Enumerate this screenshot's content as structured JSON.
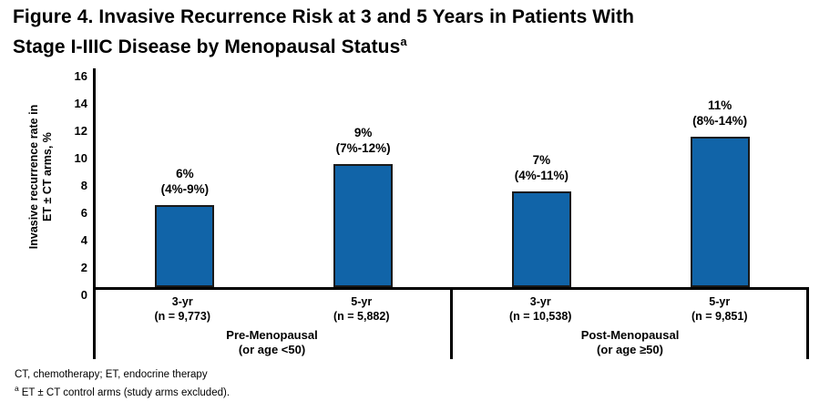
{
  "title": {
    "lines": [
      "Figure 4. Invasive Recurrence Risk at 3 and 5 Years in Patients With",
      "Stage I-IIIC Disease by Menopausal Status"
    ],
    "superscript": "a"
  },
  "chart_data": {
    "type": "bar",
    "title": "Figure 4. Invasive Recurrence Risk at 3 and 5 Years in Patients With Stage I-IIIC Disease by Menopausal Status",
    "ylabel_lines": [
      "Invasive recurrence rate in",
      "ET ± CT arms, %"
    ],
    "ylim": [
      0,
      16
    ],
    "yticks": [
      0,
      2,
      4,
      6,
      8,
      10,
      12,
      14,
      16
    ],
    "grid": false,
    "legend": false,
    "bar_color": "#1164A8",
    "bar_border_color": "#1A1A1A",
    "axis_color": "#000000",
    "groups": [
      {
        "label_lines": [
          "Pre-Menopausal",
          "(or age <50)"
        ],
        "bars": [
          {
            "timepoint": "3-yr",
            "n": "9,773",
            "value": 6,
            "ci_low": 4,
            "ci_high": 9,
            "x_label_lines": [
              "3-yr",
              "(n = 9,773)"
            ],
            "value_label_lines": [
              "6%",
              "(4%-9%)"
            ]
          },
          {
            "timepoint": "5-yr",
            "n": "5,882",
            "value": 9,
            "ci_low": 7,
            "ci_high": 12,
            "x_label_lines": [
              "5-yr",
              "(n = 5,882)"
            ],
            "value_label_lines": [
              "9%",
              "(7%-12%)"
            ]
          }
        ]
      },
      {
        "label_lines": [
          "Post-Menopausal",
          "(or age ≥50)"
        ],
        "bars": [
          {
            "timepoint": "3-yr",
            "n": "10,538",
            "value": 7,
            "ci_low": 4,
            "ci_high": 11,
            "x_label_lines": [
              "3-yr",
              "(n = 10,538)"
            ],
            "value_label_lines": [
              "7%",
              "(4%-11%)"
            ]
          },
          {
            "timepoint": "5-yr",
            "n": "9,851",
            "value": 11,
            "ci_low": 8,
            "ci_high": 14,
            "x_label_lines": [
              "5-yr",
              "(n = 9,851)"
            ],
            "value_label_lines": [
              "11%",
              "(8%-14%)"
            ]
          }
        ]
      }
    ]
  },
  "footnotes": {
    "abbreviations": "CT, chemotherapy; ET, endocrine therapy",
    "note_superscript": "a",
    "note_text": "ET ± CT control arms (study arms excluded)."
  }
}
